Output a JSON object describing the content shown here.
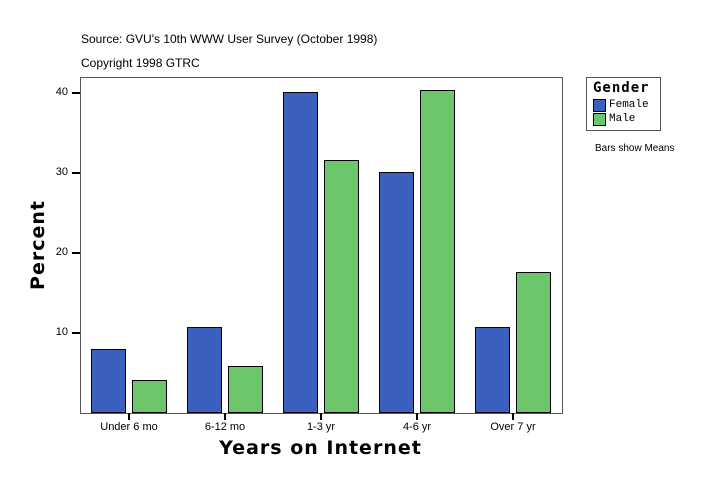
{
  "header": {
    "source": "Source: GVU's 10th WWW User Survey (October 1998)",
    "copyright": "Copyright 1998 GTRC"
  },
  "legend": {
    "title": "Gender",
    "items": [
      {
        "label": "Female",
        "color": "#3a5fbf"
      },
      {
        "label": "Male",
        "color": "#6cc66c"
      }
    ]
  },
  "note": "Bars show Means",
  "chart_data": {
    "type": "bar",
    "title": "",
    "xlabel": "Years on Internet",
    "ylabel": "Percent",
    "categories": [
      "Under 6 mo",
      "6-12 mo",
      "1-3 yr",
      "4-6 yr",
      "Over 7 yr"
    ],
    "series": [
      {
        "name": "Female",
        "color": "#3a5fbf",
        "values": [
          8.0,
          10.8,
          40.1,
          30.1,
          10.8
        ]
      },
      {
        "name": "Male",
        "color": "#6cc66c",
        "values": [
          4.1,
          5.9,
          31.6,
          40.4,
          17.6
        ]
      }
    ],
    "yticks": [
      10,
      20,
      30,
      40
    ],
    "ylim": [
      0,
      41.8
    ],
    "grid": false,
    "legend_position": "right"
  }
}
